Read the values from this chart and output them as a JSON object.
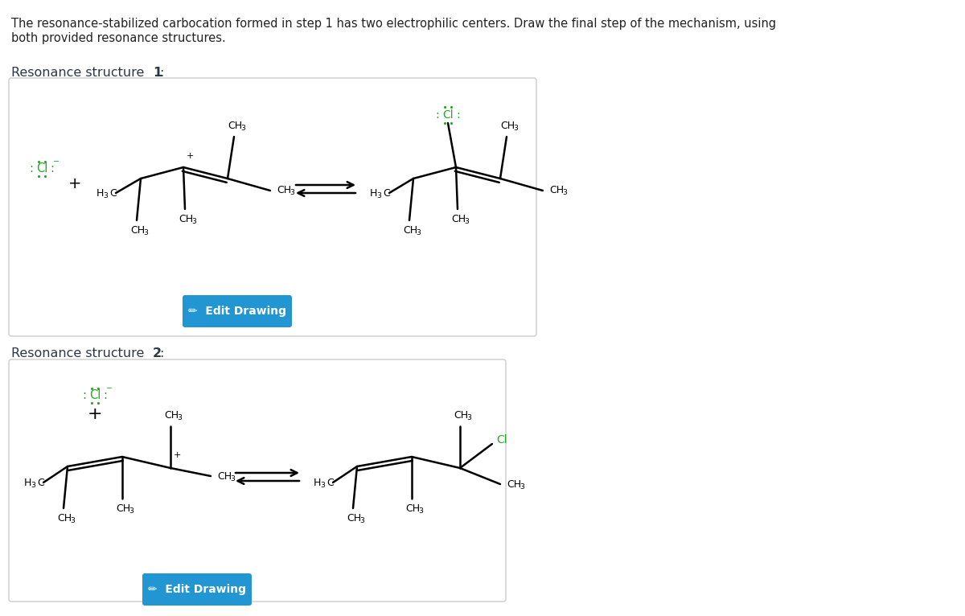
{
  "bg_color": "#ffffff",
  "title_line1": "The resonance-stabilized carbocation formed in step 1 has two electrophilic centers. Draw the final step of the mechanism, using",
  "title_line2": "both provided resonance structures.",
  "cl_color": "#22aa22",
  "bond_color": "#000000",
  "button_color": "#2196d3",
  "button_text_color": "#ffffff",
  "rs1_label_normal": "Resonance structure ",
  "rs1_label_bold": "1",
  "rs2_label_normal": "Resonance structure ",
  "rs2_label_bold": "2",
  "text_color": "#2d3748",
  "box_edge_color": "#cccccc"
}
